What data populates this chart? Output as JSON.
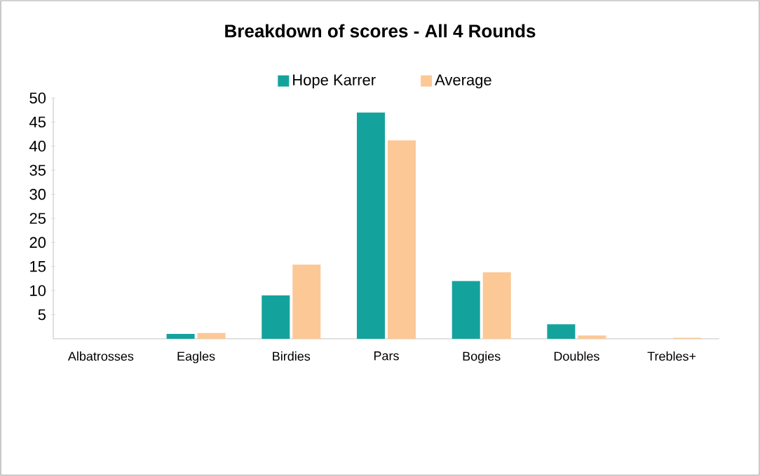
{
  "chart_data": {
    "type": "bar",
    "title": "Breakdown of scores - All 4 Rounds",
    "categories": [
      "Albatrosses",
      "Eagles",
      "Birdies",
      "Pars",
      "Bogies",
      "Doubles",
      "Trebles+"
    ],
    "series": [
      {
        "name": "Hope Karrer",
        "color": "#14a39c",
        "values": [
          0,
          1,
          9,
          47,
          12,
          3,
          0
        ]
      },
      {
        "name": "Average",
        "color": "#fcc896",
        "values": [
          0,
          1.2,
          15.4,
          41.2,
          13.8,
          0.7,
          0.2
        ]
      }
    ],
    "ylim": [
      0,
      50
    ],
    "yticks": [
      5,
      10,
      15,
      20,
      25,
      30,
      35,
      40,
      45,
      50
    ],
    "grid": false,
    "legend": "top"
  }
}
